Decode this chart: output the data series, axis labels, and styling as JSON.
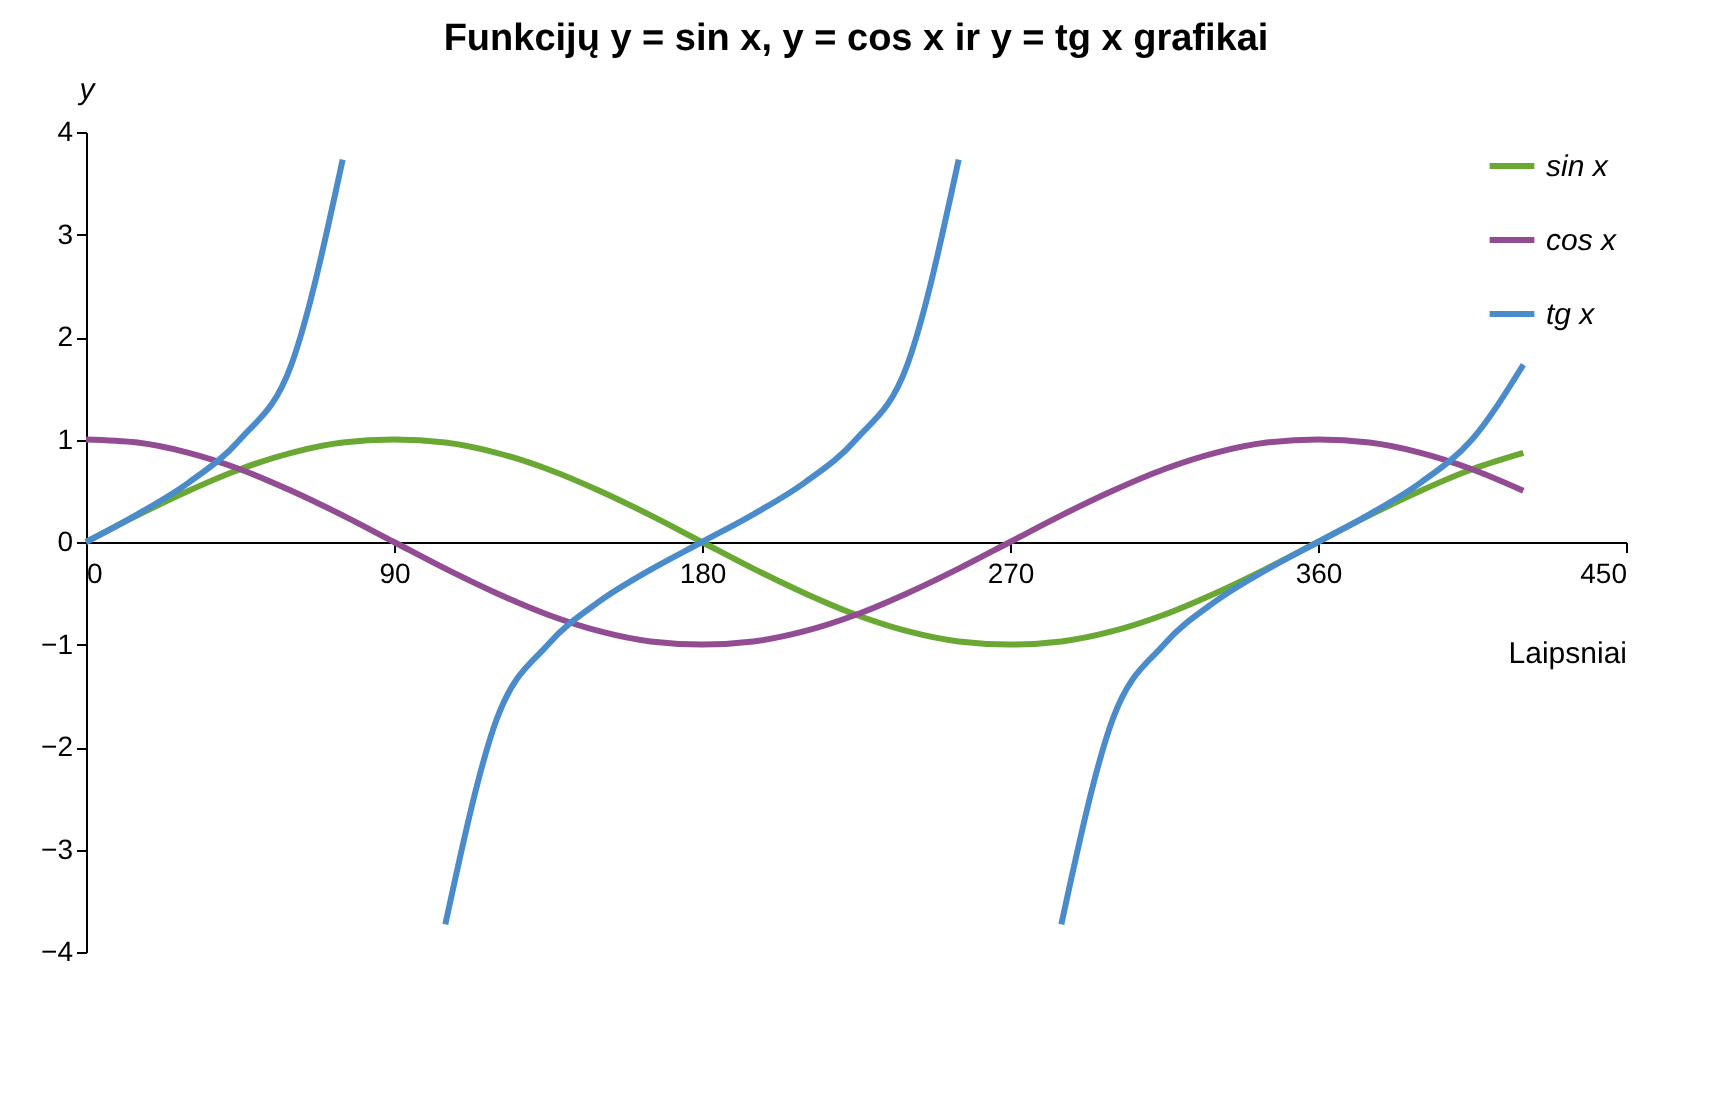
{
  "chart_data": {
    "type": "line",
    "title": "Funkcijų y = sin x, y = cos x ir y = tg x grafikai",
    "xlabel": "Laipsniai",
    "ylabel": "y",
    "x": [
      0,
      15,
      30,
      45,
      60,
      75,
      90,
      105,
      120,
      135,
      150,
      165,
      180,
      195,
      210,
      225,
      240,
      255,
      270,
      285,
      300,
      315,
      330,
      345,
      360,
      375,
      390,
      405,
      420
    ],
    "series": [
      {
        "name": "sin x",
        "color": "#6aa834",
        "values": [
          0,
          0.26,
          0.5,
          0.71,
          0.87,
          0.97,
          1,
          0.97,
          0.87,
          0.71,
          0.5,
          0.26,
          0,
          -0.26,
          -0.5,
          -0.71,
          -0.87,
          -0.97,
          -1,
          -0.97,
          -0.87,
          -0.71,
          -0.5,
          -0.26,
          0,
          0.26,
          0.5,
          0.71,
          0.87
        ]
      },
      {
        "name": "cos x",
        "color": "#924c93",
        "values": [
          1,
          0.97,
          0.87,
          0.71,
          0.5,
          0.26,
          0,
          -0.26,
          -0.5,
          -0.71,
          -0.87,
          -0.97,
          -1,
          -0.97,
          -0.87,
          -0.71,
          -0.5,
          -0.26,
          0,
          0.26,
          0.5,
          0.71,
          0.87,
          0.97,
          1,
          0.97,
          0.87,
          0.71,
          0.5
        ]
      },
      {
        "name": "tg x",
        "color": "#4a8ccb",
        "values": [
          0,
          0.27,
          0.58,
          1,
          1.73,
          3.73,
          null,
          -3.73,
          -1.73,
          -1,
          -0.58,
          -0.27,
          0,
          0.27,
          0.58,
          1,
          1.73,
          3.73,
          null,
          -3.73,
          -1.73,
          -1,
          -0.58,
          -0.27,
          0,
          0.27,
          0.58,
          1,
          1.73
        ]
      }
    ],
    "xlim": [
      0,
      450
    ],
    "xticks": [
      0,
      90,
      180,
      270,
      360,
      450
    ],
    "ylim": [
      -4,
      4
    ],
    "yticks": [
      -4,
      -3,
      -2,
      -1,
      0,
      1,
      2,
      3,
      4
    ],
    "grid": false,
    "legend": "top right",
    "marker": "none",
    "line_style": "solid"
  }
}
